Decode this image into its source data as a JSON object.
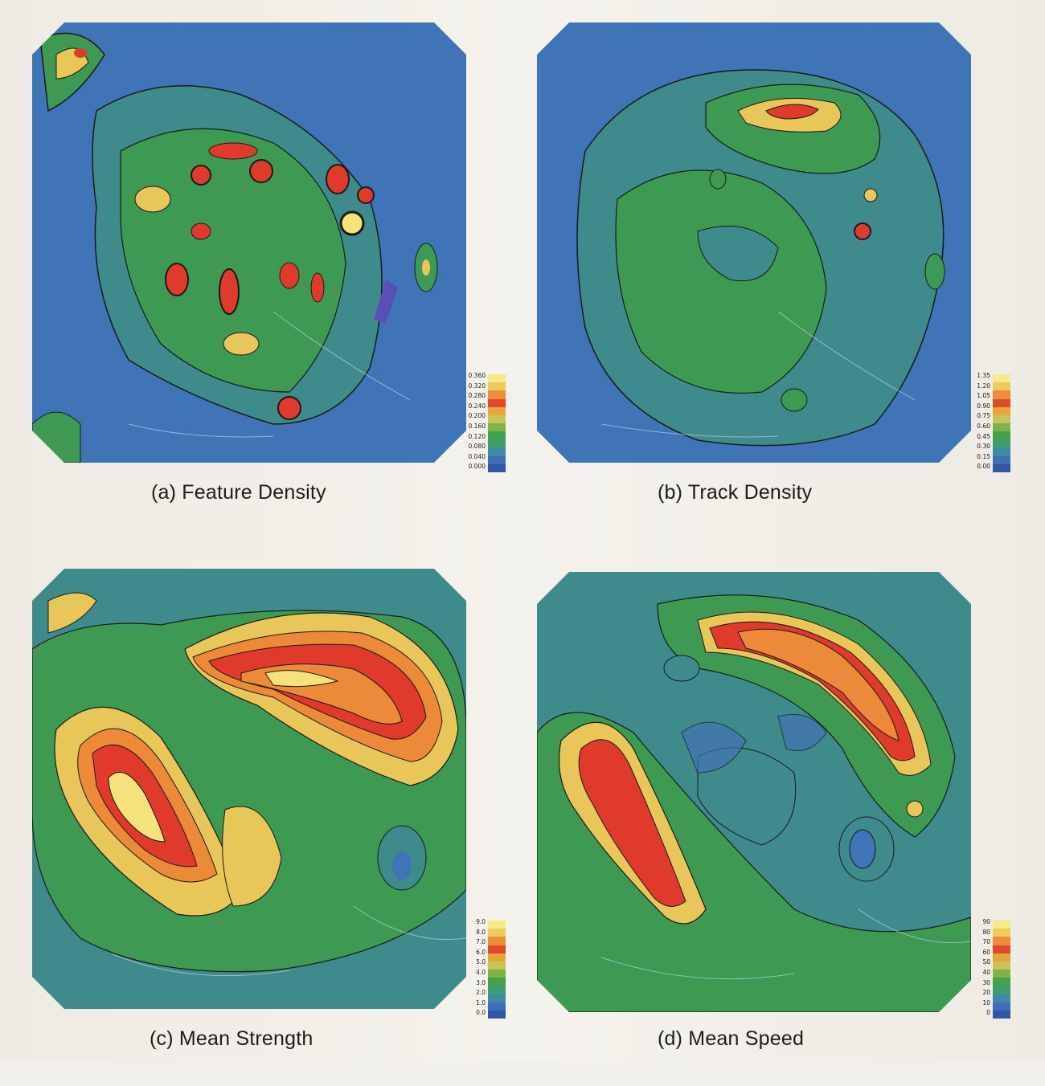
{
  "colors": {
    "ocean": "#3f74b6",
    "low": "#2f63b0",
    "blue_green": "#3f8a8a",
    "green": "#3e9a52",
    "light_green": "#7ab548",
    "yellow": "#e8c65a",
    "orange": "#ec8a3a",
    "red": "#df3a2c",
    "pale_yellow": "#f6e27a",
    "coast": "#b9d2e8",
    "contour": "#1a1a1a"
  },
  "legend_palette": [
    "#3355a6",
    "#3e6fb8",
    "#3c8aa4",
    "#3f9b72",
    "#46a24a",
    "#7cb44a",
    "#c8c458",
    "#e7a63c",
    "#e04a2c",
    "#eb8d3a",
    "#eecb5a",
    "#f5e989"
  ],
  "panels": [
    {
      "caption": "(a) Feature Density",
      "legend": [
        "0.360",
        "0.320",
        "0.280",
        "0.240",
        "0.200",
        "0.160",
        "0.120",
        "0.080",
        "0.040",
        "0.000"
      ]
    },
    {
      "caption": "(b) Track Density",
      "legend": [
        "1.35",
        "1.20",
        "1.05",
        "0.90",
        "0.75",
        "0.60",
        "0.45",
        "0.30",
        "0.15",
        "0.00"
      ]
    },
    {
      "caption": "(c) Mean Strength",
      "legend": [
        "9.0",
        "8.0",
        "7.0",
        "6.0",
        "5.0",
        "4.0",
        "3.0",
        "2.0",
        "1.0",
        "0.0"
      ]
    },
    {
      "caption": "(d) Mean Speed",
      "legend": [
        "90",
        "80",
        "70",
        "60",
        "50",
        "40",
        "30",
        "20",
        "10",
        "0"
      ]
    }
  ]
}
